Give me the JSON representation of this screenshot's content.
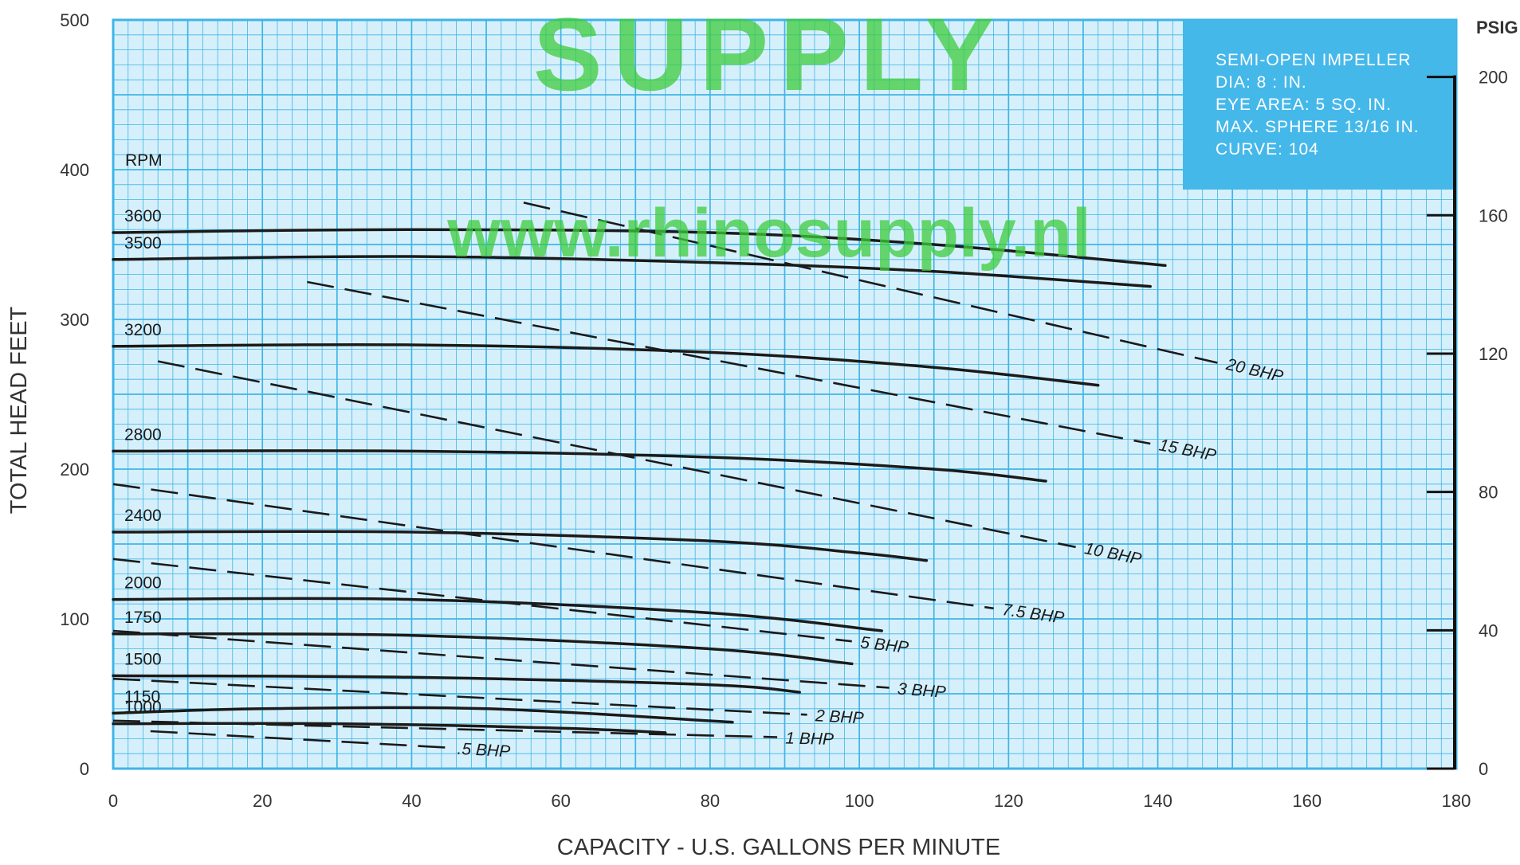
{
  "chart_data": {
    "type": "line",
    "title": "",
    "xlabel": "CAPACITY - U.S. GALLONS PER MINUTE",
    "ylabel": "TOTAL HEAD FEET",
    "y2label": "PSIG",
    "xlim": [
      0,
      180
    ],
    "ylim": [
      0,
      500
    ],
    "y2lim": [
      0,
      216.5
    ],
    "x_ticks": [
      0,
      20,
      40,
      60,
      80,
      100,
      120,
      140,
      160,
      180
    ],
    "y_ticks": [
      0,
      100,
      200,
      300,
      400,
      500
    ],
    "y2_ticks": [
      0,
      40,
      80,
      120,
      160,
      200
    ],
    "grid": true,
    "rpm_header": "RPM",
    "info_box": [
      "SEMI-OPEN IMPELLER",
      "DIA: 8 : IN.",
      "EYE AREA: 5 SQ. IN.",
      "MAX. SPHERE 13/16 IN.",
      "CURVE: 104"
    ],
    "watermark": [
      "SUPPLY",
      "www.rhinosupply.nl"
    ],
    "colors": {
      "plot_background": "#d6f0fb",
      "grid": "#3fb4e6",
      "info_box": "#45b8ea",
      "curve": "#1a1a1a"
    },
    "rpm_curves": [
      {
        "label": "3600",
        "x": [
          0,
          40,
          80,
          110,
          141
        ],
        "y": [
          358,
          360,
          358,
          350,
          336
        ]
      },
      {
        "label": "3500",
        "x": [
          0,
          40,
          80,
          110,
          139
        ],
        "y": [
          340,
          342,
          338,
          332,
          322
        ]
      },
      {
        "label": "3200",
        "x": [
          0,
          40,
          80,
          110,
          132
        ],
        "y": [
          282,
          283,
          278,
          268,
          256
        ]
      },
      {
        "label": "2800",
        "x": [
          0,
          40,
          80,
          110,
          125
        ],
        "y": [
          212,
          212,
          208,
          200,
          192
        ]
      },
      {
        "label": "2400",
        "x": [
          0,
          40,
          80,
          100,
          109
        ],
        "y": [
          158,
          158,
          152,
          144,
          139
        ]
      },
      {
        "label": "2000",
        "x": [
          0,
          40,
          80,
          103
        ],
        "y": [
          113,
          113,
          104,
          92
        ]
      },
      {
        "label": "1750",
        "x": [
          0,
          40,
          80,
          99
        ],
        "y": [
          90,
          89,
          80,
          70
        ]
      },
      {
        "label": "1500",
        "x": [
          0,
          40,
          80,
          92
        ],
        "y": [
          62,
          61,
          56,
          51
        ]
      },
      {
        "label": "1150",
        "x": [
          0,
          20,
          50,
          83
        ],
        "y": [
          37,
          40,
          40,
          31
        ]
      },
      {
        "label": "1000",
        "x": [
          0,
          30,
          60,
          74
        ],
        "y": [
          30,
          30,
          27,
          24
        ]
      }
    ],
    "bhp_lines": [
      {
        "label": "20 BHP",
        "x": [
          55,
          148
        ],
        "y": [
          378,
          271
        ]
      },
      {
        "label": "15 BHP",
        "x": [
          26,
          139
        ],
        "y": [
          325,
          217
        ]
      },
      {
        "label": "10 BHP",
        "x": [
          6,
          129
        ],
        "y": [
          272,
          148
        ]
      },
      {
        "label": "7.5 BHP",
        "x": [
          0,
          118
        ],
        "y": [
          190,
          107
        ]
      },
      {
        "label": "5 BHP",
        "x": [
          0,
          99
        ],
        "y": [
          140,
          85
        ]
      },
      {
        "label": "3 BHP",
        "x": [
          0,
          104
        ],
        "y": [
          92,
          54
        ]
      },
      {
        "label": "2 BHP",
        "x": [
          0,
          93
        ],
        "y": [
          60,
          36
        ]
      },
      {
        "label": "1 BHP",
        "x": [
          0,
          89
        ],
        "y": [
          32,
          21
        ]
      },
      {
        "label": ".5 BHP",
        "x": [
          5,
          45
        ],
        "y": [
          25,
          14
        ]
      }
    ]
  }
}
